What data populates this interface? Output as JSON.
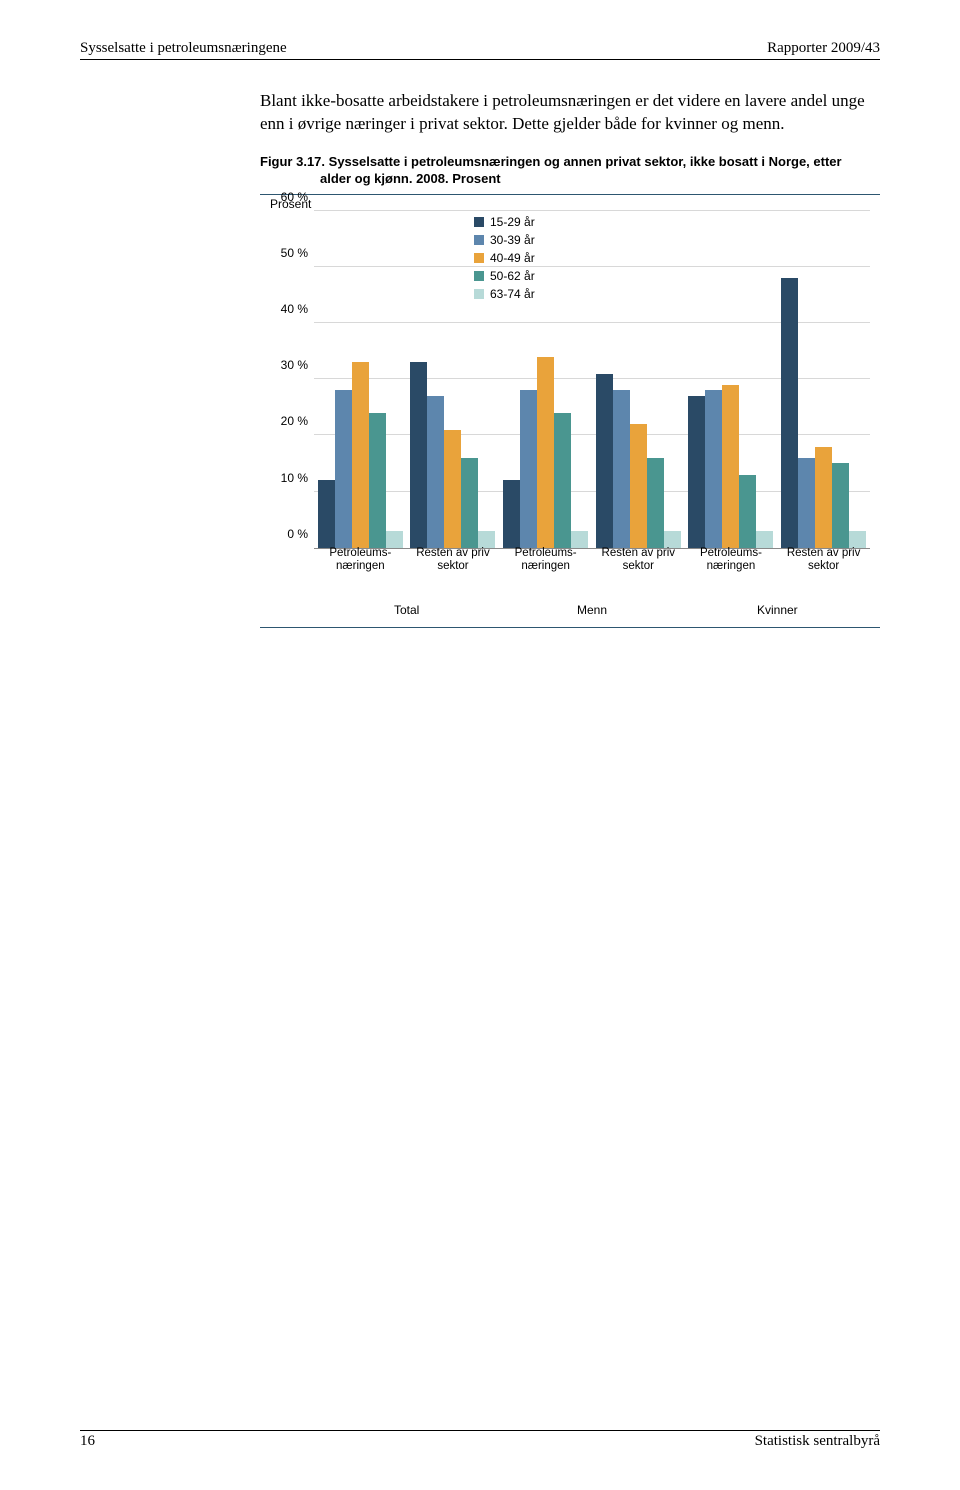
{
  "header": {
    "left": "Sysselsatte i petroleumsnæringene",
    "right": "Rapporter 2009/43"
  },
  "paragraph": "Blant ikke-bosatte arbeidstakere i petroleumsnæringen er det videre en lavere andel unge enn i øvrige næringer i privat sektor. Dette gjelder både for kvinner og menn.",
  "figure": {
    "number": "Figur 3.17.",
    "title_line": "Sysselsatte i petroleumsnæringen og annen privat sektor, ikke bosatt i Norge, etter",
    "title_line2": "alder og kjønn. 2008. Prosent"
  },
  "chart": {
    "type": "grouped-bar",
    "y_axis_title": "Prosent",
    "y_max": 60,
    "y_ticks": [
      0,
      10,
      20,
      30,
      40,
      50,
      60
    ],
    "y_tick_labels": [
      "0 %",
      "10 %",
      "20 %",
      "30 %",
      "40 %",
      "50 %",
      "60 %"
    ],
    "series": [
      {
        "name": "15-29 år",
        "color": "#2a4a66"
      },
      {
        "name": "30-39 år",
        "color": "#5d86ad"
      },
      {
        "name": "40-49 år",
        "color": "#e9a33b"
      },
      {
        "name": "50-62 år",
        "color": "#4a9690"
      },
      {
        "name": "63-74 år",
        "color": "#b7dad8"
      }
    ],
    "groups": [
      {
        "label_top": "Petroleums-",
        "label_bottom": "næringen",
        "sector": "Total",
        "values": [
          12,
          28,
          33,
          24,
          3
        ]
      },
      {
        "label_top": "Resten av priv",
        "label_bottom": "sektor",
        "sector": "Total",
        "values": [
          33,
          27,
          21,
          16,
          3
        ]
      },
      {
        "label_top": "Petroleums-",
        "label_bottom": "næringen",
        "sector": "Menn",
        "values": [
          12,
          28,
          34,
          24,
          3
        ]
      },
      {
        "label_top": "Resten av priv",
        "label_bottom": "sektor",
        "sector": "Menn",
        "values": [
          31,
          28,
          22,
          16,
          3
        ]
      },
      {
        "label_top": "Petroleums-",
        "label_bottom": "næringen",
        "sector": "Kvinner",
        "values": [
          27,
          28,
          29,
          13,
          3
        ]
      },
      {
        "label_top": "Resten av priv",
        "label_bottom": "sektor",
        "sector": "Kvinner",
        "values": [
          48,
          16,
          18,
          15,
          3
        ]
      }
    ],
    "sector_labels": [
      "Total",
      "Menn",
      "Kvinner"
    ],
    "background_color": "#ffffff",
    "grid_color": "#d8d8d8",
    "axis_color": "#888888",
    "rule_color": "#2d5670",
    "label_fontsize": 12
  },
  "footer": {
    "page_number": "16",
    "source": "Statistisk sentralbyrå"
  }
}
